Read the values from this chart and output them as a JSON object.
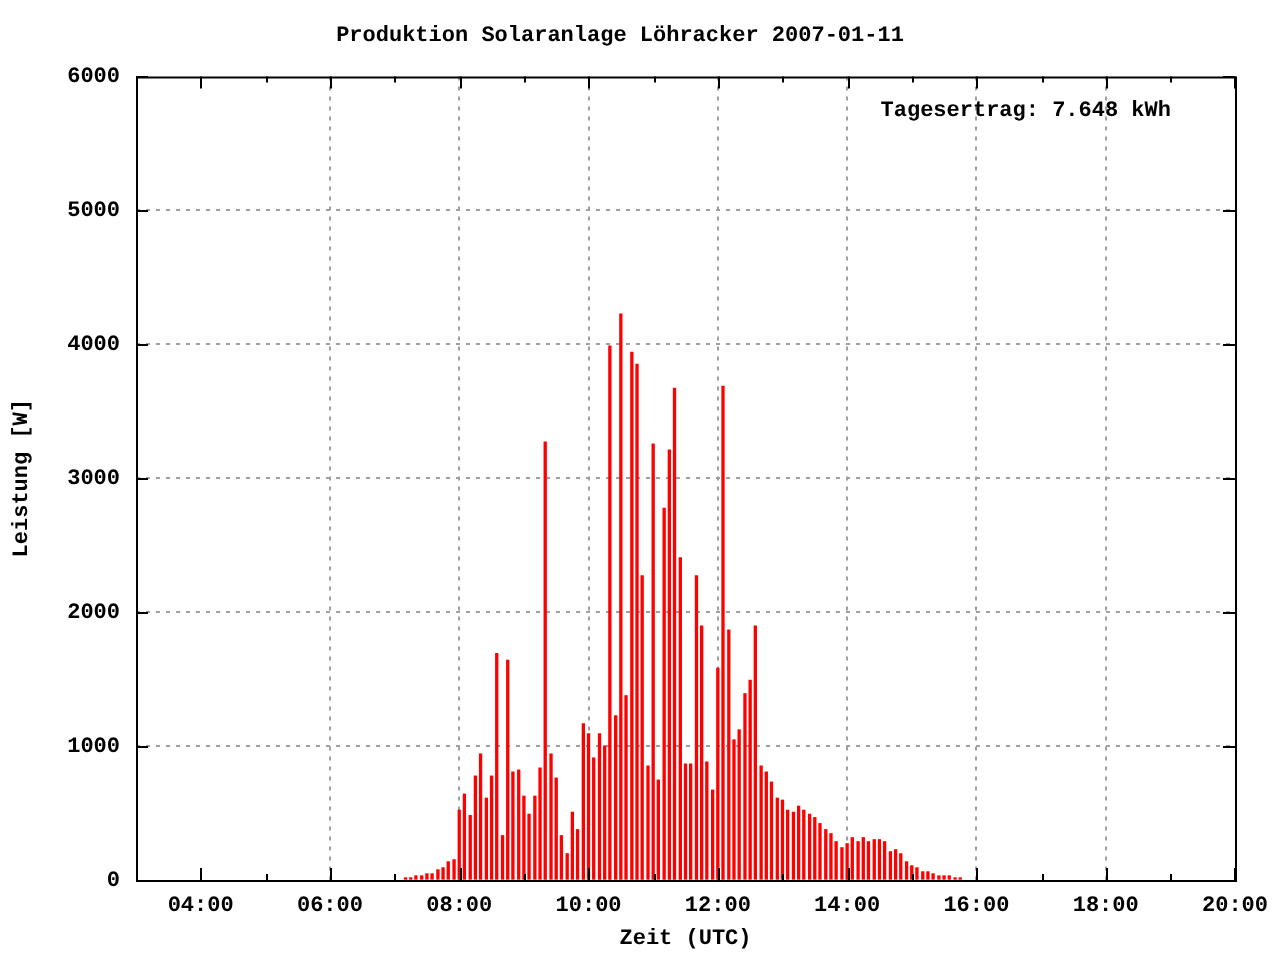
{
  "chart_data": {
    "type": "bar",
    "title": "Produktion Solaranlage Löhracker 2007-01-11",
    "xlabel": "Zeit (UTC)",
    "ylabel": "Leistung [W]",
    "annotations": [
      "Tagesertrag: 7.648 kWh"
    ],
    "x": [
      7.17,
      7.25,
      7.33,
      7.42,
      7.5,
      7.58,
      7.67,
      7.75,
      7.83,
      7.92,
      8,
      8.08,
      8.17,
      8.25,
      8.33,
      8.42,
      8.5,
      8.58,
      8.67,
      8.75,
      8.83,
      8.92,
      9,
      9.08,
      9.17,
      9.25,
      9.33,
      9.42,
      9.5,
      9.58,
      9.67,
      9.75,
      9.83,
      9.92,
      10,
      10.08,
      10.17,
      10.25,
      10.33,
      10.42,
      10.5,
      10.58,
      10.67,
      10.75,
      10.83,
      10.92,
      11,
      11.08,
      11.17,
      11.25,
      11.33,
      11.42,
      11.5,
      11.58,
      11.67,
      11.75,
      11.83,
      11.92,
      12,
      12.08,
      12.17,
      12.25,
      12.33,
      12.42,
      12.5,
      12.58,
      12.67,
      12.75,
      12.83,
      12.92,
      13,
      13.08,
      13.17,
      13.25,
      13.33,
      13.42,
      13.5,
      13.58,
      13.67,
      13.75,
      13.83,
      13.92,
      14,
      14.08,
      14.17,
      14.25,
      14.33,
      14.42,
      14.5,
      14.58,
      14.67,
      14.75,
      14.83,
      14.92,
      15,
      15.08,
      15.17,
      15.25,
      15.33,
      15.42,
      15.5,
      15.58,
      15.67,
      15.75
    ],
    "values": [
      15,
      15,
      30,
      30,
      45,
      45,
      75,
      90,
      135,
      150,
      520,
      640,
      480,
      775,
      940,
      610,
      775,
      1690,
      330,
      1640,
      805,
      820,
      625,
      490,
      625,
      835,
      3270,
      940,
      760,
      330,
      195,
      505,
      375,
      1165,
      1090,
      910,
      1090,
      1000,
      3985,
      1225,
      4225,
      1375,
      3940,
      3850,
      2270,
      850,
      3255,
      745,
      2775,
      3210,
      3670,
      2405,
      865,
      865,
      2270,
      1895,
      880,
      670,
      1580,
      3685,
      1865,
      1045,
      1120,
      1390,
      1490,
      1895,
      850,
      805,
      730,
      610,
      595,
      520,
      505,
      550,
      520,
      490,
      465,
      420,
      375,
      345,
      285,
      240,
      270,
      315,
      285,
      315,
      285,
      300,
      300,
      285,
      210,
      225,
      195,
      135,
      105,
      90,
      60,
      60,
      45,
      30,
      30,
      30,
      15,
      15
    ],
    "color": "#ff0000",
    "xlim": [
      3,
      20
    ],
    "xticks": [
      {
        "value": 4,
        "label": "04:00"
      },
      {
        "value": 5,
        "label": null
      },
      {
        "value": 6,
        "label": "06:00"
      },
      {
        "value": 7,
        "label": null
      },
      {
        "value": 8,
        "label": "08:00"
      },
      {
        "value": 9,
        "label": null
      },
      {
        "value": 10,
        "label": "10:00"
      },
      {
        "value": 11,
        "label": null
      },
      {
        "value": 12,
        "label": "12:00"
      },
      {
        "value": 13,
        "label": null
      },
      {
        "value": 14,
        "label": "14:00"
      },
      {
        "value": 15,
        "label": null
      },
      {
        "value": 16,
        "label": "16:00"
      },
      {
        "value": 17,
        "label": null
      },
      {
        "value": 18,
        "label": "18:00"
      },
      {
        "value": 19,
        "label": null
      },
      {
        "value": 20,
        "label": "20:00"
      }
    ],
    "ylim": [
      0,
      6000
    ],
    "yticks": [
      0,
      1000,
      2000,
      3000,
      4000,
      5000,
      6000
    ],
    "grid": true,
    "legend": false
  }
}
